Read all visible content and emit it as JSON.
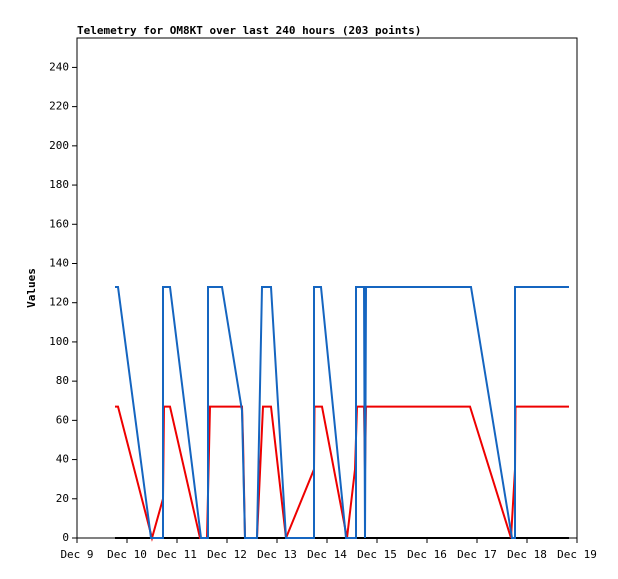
{
  "chart_data": {
    "type": "line",
    "title": "Telemetry for OM8KT over last 240 hours (203 points)",
    "y_label": "Values",
    "xlim": [
      9,
      19
    ],
    "xticks": [
      {
        "value": 9,
        "label": "Dec 9"
      },
      {
        "value": 10,
        "label": "Dec 10"
      },
      {
        "value": 11,
        "label": "Dec 11"
      },
      {
        "value": 12,
        "label": "Dec 12"
      },
      {
        "value": 13,
        "label": "Dec 13"
      },
      {
        "value": 14,
        "label": "Dec 14"
      },
      {
        "value": 15,
        "label": "Dec 15"
      },
      {
        "value": 16,
        "label": "Dec 16"
      },
      {
        "value": 17,
        "label": "Dec 17"
      },
      {
        "value": 18,
        "label": "Dec 18"
      },
      {
        "value": 19,
        "label": "Dec 19"
      }
    ],
    "ylim": [
      0,
      255
    ],
    "yticks": [
      0,
      20,
      40,
      60,
      80,
      100,
      120,
      140,
      160,
      180,
      200,
      220,
      240
    ],
    "series": [
      {
        "color": "#000000",
        "x": [
          9.76,
          18.84
        ],
        "values": [
          0,
          0
        ]
      },
      {
        "color": "#ee0000",
        "x": [
          9.76,
          9.82,
          10.5,
          10.72,
          10.74,
          10.86,
          11.46,
          11.6,
          11.66,
          12.3,
          12.32,
          12.36,
          12.6,
          12.72,
          12.88,
          13.18,
          13.74,
          13.75,
          13.9,
          14.4,
          14.56,
          14.6,
          14.74,
          14.76,
          14.78,
          16.86,
          17.68,
          17.76,
          17.77,
          18.84
        ],
        "values": [
          67,
          67,
          0,
          20,
          67,
          67,
          0,
          0,
          67,
          67,
          50,
          0,
          0,
          67,
          67,
          0,
          35,
          67,
          67,
          0,
          35,
          67,
          67,
          35,
          67,
          67,
          0,
          35,
          67,
          67
        ]
      },
      {
        "color": "#1565c0",
        "x": [
          9.76,
          9.82,
          10.48,
          10.72,
          10.72,
          10.86,
          11.48,
          11.62,
          11.62,
          11.9,
          12.3,
          12.36,
          12.6,
          12.7,
          12.88,
          13.18,
          13.74,
          13.74,
          13.88,
          14.38,
          14.58,
          14.58,
          14.74,
          14.76,
          14.78,
          16.88,
          17.7,
          17.76,
          17.76,
          18.84
        ],
        "values": [
          128,
          128,
          0,
          0,
          128,
          128,
          0,
          0,
          128,
          128,
          65,
          0,
          0,
          128,
          128,
          0,
          0,
          128,
          128,
          0,
          0,
          128,
          128,
          0,
          128,
          128,
          0,
          0,
          128,
          128
        ]
      }
    ]
  }
}
